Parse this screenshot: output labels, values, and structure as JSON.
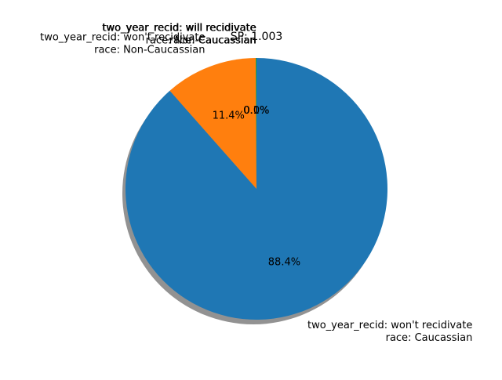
{
  "chart_data": {
    "type": "pie",
    "title": "SP: 1.003",
    "slices": [
      {
        "label_line1": "two_year_recid: won't recidivate",
        "label_line2": "race: Caucassian",
        "value": 88.4,
        "pct_label": "88.4%",
        "color": "#1f77b4"
      },
      {
        "label_line1": "two_year_recid: won't recidivate",
        "label_line2": "race: Non-Caucassian",
        "value": 11.4,
        "pct_label": "11.4%",
        "color": "#ff7f0e"
      },
      {
        "label_line1": "two_year_recid: will recidivate",
        "label_line2": "race: Caucassian",
        "value": 0.1,
        "pct_label": "0.1%",
        "color": "#2ca02c"
      },
      {
        "label_line1": "two_year_recid: will recidivate",
        "label_line2": "race: Non-Caucassian",
        "value": 0.0,
        "pct_label": "0.0%",
        "color": "#d62728"
      }
    ],
    "start_angle_deg": 90,
    "direction": "clockwise",
    "shadow": true,
    "autopct_format": "%1.1f%%"
  }
}
